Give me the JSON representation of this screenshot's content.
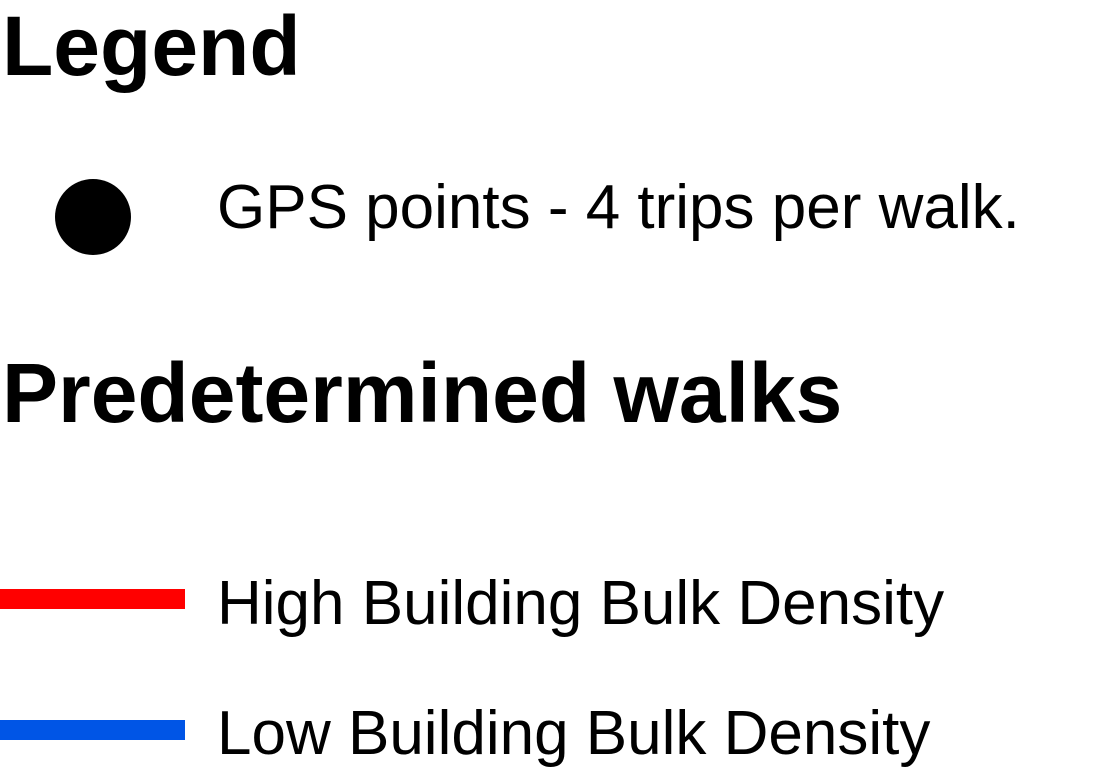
{
  "legend": {
    "title": "Legend",
    "gps": {
      "label": "GPS points - 4 trips per walk.",
      "symbol": "circle-marker",
      "color": "#000000"
    }
  },
  "walks": {
    "title": "Predetermined walks",
    "items": [
      {
        "label": "High Building Bulk Density",
        "color": "#ff0000"
      },
      {
        "label": "Low Building Bulk Density",
        "color": "#0055e6"
      }
    ]
  }
}
